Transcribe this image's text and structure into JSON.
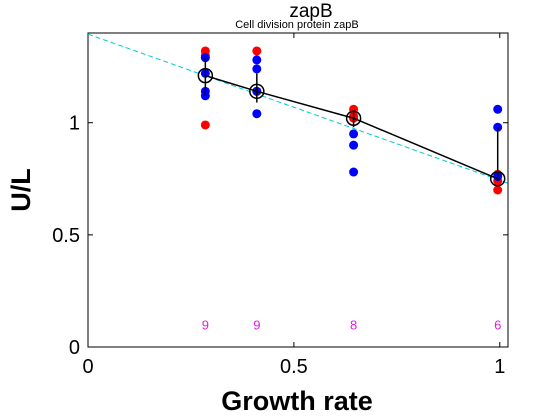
{
  "chart_data": {
    "type": "scatter",
    "title": "zapB",
    "subtitle": "Cell division protein zapB",
    "xlabel": "Growth rate",
    "ylabel": "U/L",
    "xlim": [
      0,
      1.02
    ],
    "ylim": [
      0,
      1.4
    ],
    "xticks": [
      0,
      0.5,
      1
    ],
    "yticks": [
      0,
      0.5,
      1
    ],
    "xtick_labels": [
      "0",
      "0.5",
      "1"
    ],
    "ytick_labels": [
      "0",
      "0.5",
      "1"
    ],
    "grid": false,
    "groups": [
      {
        "x": 0.285,
        "red": [
          1.32,
          1.3,
          0.99
        ],
        "blue": [
          1.29,
          1.22,
          1.14,
          1.12
        ],
        "mean": 1.21,
        "err_low": 1.12,
        "err_high": 1.29,
        "count": "9"
      },
      {
        "x": 0.41,
        "red": [
          1.32,
          1.14
        ],
        "blue": [
          1.28,
          1.24,
          1.14,
          1.04
        ],
        "mean": 1.14,
        "err_low": 1.09,
        "err_high": 1.22,
        "count": "9"
      },
      {
        "x": 0.645,
        "red": [
          1.06,
          1.03,
          1.02
        ],
        "blue": [
          0.95,
          0.9,
          0.78
        ],
        "mean": 1.02,
        "err_low": 0.98,
        "err_high": 1.05,
        "count": "8"
      },
      {
        "x": 0.995,
        "red": [
          0.77,
          0.7,
          0.74
        ],
        "blue": [
          1.06,
          0.98,
          0.76
        ],
        "mean": 0.75,
        "err_low": 0.74,
        "err_high": 0.98,
        "count": "6"
      }
    ],
    "mean_line": [
      [
        0.285,
        1.21
      ],
      [
        0.41,
        1.14
      ],
      [
        0.645,
        1.02
      ],
      [
        0.995,
        0.75
      ]
    ],
    "fit_line": [
      [
        0,
        1.395
      ],
      [
        1.02,
        0.73
      ]
    ],
    "count_label_y": 0.1,
    "colors": {
      "red": "#ff0000",
      "blue": "#0000ff",
      "mean": "#000000",
      "fit": "#00cccc",
      "count": "#e020e0"
    }
  }
}
